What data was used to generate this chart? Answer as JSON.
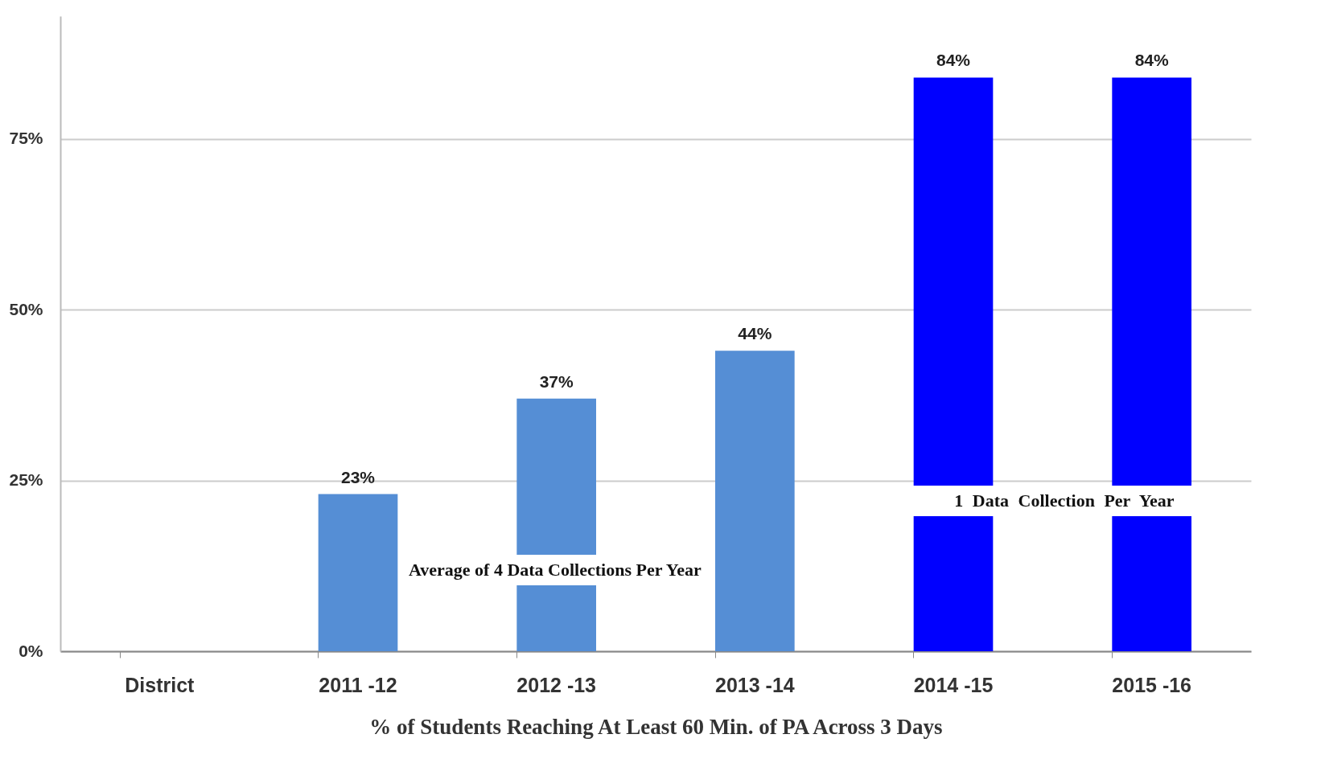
{
  "chart_data": {
    "type": "bar",
    "categories": [
      "District",
      "2011 -12",
      "2012 -13",
      "2013 -14",
      "2014 -15",
      "2015 -16"
    ],
    "values": [
      null,
      23,
      37,
      44,
      84,
      84
    ],
    "colors": [
      null,
      "#558ed5",
      "#558ed5",
      "#558ed5",
      "#0000ff",
      "#0000ff"
    ],
    "value_labels": [
      null,
      "23%",
      "37%",
      "44%",
      "84%",
      "84%"
    ],
    "ylim": [
      0,
      93
    ],
    "yticks": [
      {
        "value": 0,
        "label": "0%"
      },
      {
        "value": 25,
        "label": "25%"
      },
      {
        "value": 50,
        "label": "50%"
      },
      {
        "value": 75,
        "label": "75%"
      }
    ],
    "grid": "y",
    "xlabel": "% of Students Reaching At Least 60 Min. of PA Across 3 Days",
    "annotations": [
      "Average of 4 Data Collections Per Year",
      "1 Data Collection Per Year"
    ]
  }
}
